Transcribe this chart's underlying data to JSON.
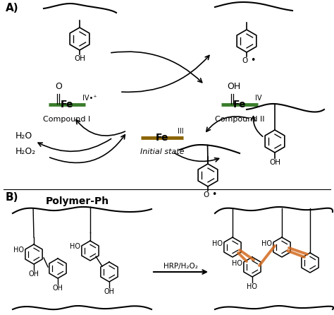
{
  "title_A": "A)",
  "title_B": "B)",
  "compound1_label": "Compound I",
  "compound2_label": "Compound II",
  "initial_label": "Initial state",
  "h2o": "H₂O",
  "h2o2": "H₂O₂",
  "hrp": "HRP/H₂O₂",
  "polymer": "Polymer-Ph",
  "fe_green_color": "#3a7d2c",
  "fe_brown_color": "#8B6400",
  "bg_color": "#ffffff",
  "text_color": "#000000",
  "orange_color": "#D2691E",
  "fig_w": 4.74,
  "fig_h": 4.46,
  "dpi": 100
}
